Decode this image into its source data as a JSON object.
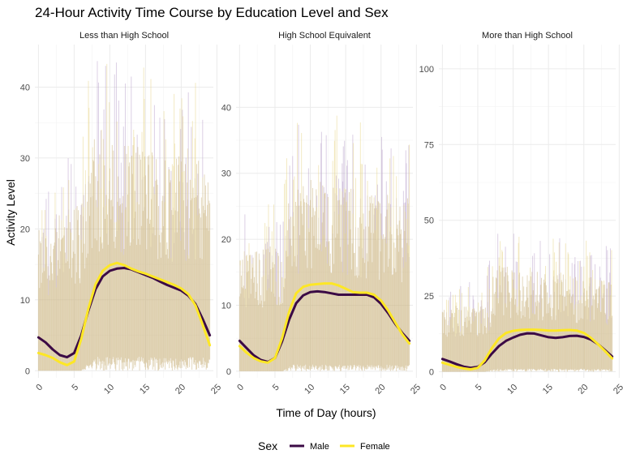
{
  "title": "24-Hour Activity Time Course by Education Level and Sex",
  "xlabel": "Time of Day (hours)",
  "ylabel": "Activity Level",
  "legend": {
    "title": "Sex",
    "items": [
      {
        "label": "Male",
        "color": "#3b0a45"
      },
      {
        "label": "Female",
        "color": "#fde725"
      }
    ]
  },
  "colors": {
    "male_line": "#3b0a45",
    "female_line": "#fde725",
    "male_ribbon": "#b9a2cc",
    "female_ribbon": "#e8d58a",
    "overlap": "#cdb887",
    "grid": "#ebebeb",
    "text": "#4d4d4d"
  },
  "chart_data": [
    {
      "type": "line",
      "facet": "Less than High School",
      "x_ticks": [
        0,
        5,
        10,
        15,
        20,
        25
      ],
      "y_ticks": [
        0,
        10,
        20,
        30,
        40
      ],
      "ylim": [
        -1,
        46
      ],
      "xlim": [
        -0.5,
        24.5
      ],
      "series": [
        {
          "name": "Male",
          "x": [
            0,
            1,
            2,
            3,
            4,
            5,
            6,
            7,
            8,
            9,
            10,
            11,
            12,
            13,
            14,
            15,
            16,
            17,
            18,
            19,
            20,
            21,
            22,
            23,
            24
          ],
          "y": [
            4.7,
            4.0,
            3.0,
            2.2,
            1.9,
            2.5,
            5.0,
            8.5,
            11.5,
            13.3,
            14.1,
            14.4,
            14.5,
            14.3,
            13.9,
            13.5,
            13.1,
            12.6,
            12.1,
            11.7,
            11.3,
            10.6,
            9.4,
            7.3,
            5.0
          ]
        },
        {
          "name": "Female",
          "x": [
            0,
            1,
            2,
            3,
            4,
            5,
            6,
            7,
            8,
            9,
            10,
            11,
            12,
            13,
            14,
            15,
            16,
            17,
            18,
            19,
            20,
            21,
            22,
            23,
            24
          ],
          "y": [
            2.5,
            2.2,
            1.8,
            1.2,
            0.8,
            1.3,
            4.5,
            8.8,
            12.2,
            14.1,
            14.9,
            15.2,
            14.9,
            14.4,
            14.0,
            13.7,
            13.3,
            12.9,
            12.5,
            12.1,
            11.6,
            10.8,
            9.2,
            6.5,
            3.6
          ]
        }
      ],
      "band": {
        "x": [
          0,
          6,
          7.5,
          24
        ],
        "upper": [
          18,
          22,
          30,
          27
        ],
        "lower": [
          0,
          0,
          2,
          2
        ]
      }
    },
    {
      "type": "line",
      "facet": "High School Equivalent",
      "x_ticks": [
        0,
        5,
        10,
        15,
        20,
        25
      ],
      "y_ticks": [
        0,
        10,
        20,
        30,
        40
      ],
      "ylim": [
        -1,
        49.5
      ],
      "xlim": [
        -0.5,
        24.5
      ],
      "series": [
        {
          "name": "Male",
          "x": [
            0,
            1,
            2,
            3,
            4,
            5,
            6,
            7,
            8,
            9,
            10,
            11,
            12,
            13,
            14,
            15,
            16,
            17,
            18,
            19,
            20,
            21,
            22,
            23,
            24
          ],
          "y": [
            4.6,
            3.5,
            2.4,
            1.7,
            1.4,
            2.0,
            4.5,
            7.8,
            10.3,
            11.5,
            12.0,
            12.1,
            12.0,
            11.8,
            11.6,
            11.6,
            11.6,
            11.6,
            11.6,
            11.2,
            10.2,
            8.8,
            7.2,
            5.8,
            4.6
          ]
        },
        {
          "name": "Female",
          "x": [
            0,
            1,
            2,
            3,
            4,
            5,
            6,
            7,
            8,
            9,
            10,
            11,
            12,
            13,
            14,
            15,
            16,
            17,
            18,
            19,
            20,
            21,
            22,
            23,
            24
          ],
          "y": [
            3.8,
            2.8,
            2.0,
            1.5,
            1.3,
            2.0,
            5.0,
            9.0,
            11.8,
            12.8,
            13.1,
            13.2,
            13.3,
            13.3,
            13.0,
            12.5,
            12.0,
            11.9,
            11.9,
            11.6,
            10.7,
            9.2,
            7.4,
            5.6,
            4.2
          ]
        }
      ],
      "band": {
        "x": [
          0,
          6,
          7.5,
          24
        ],
        "upper": [
          16,
          18,
          27,
          24
        ],
        "lower": [
          0,
          0,
          1,
          1
        ]
      }
    },
    {
      "type": "line",
      "facet": "More than High School",
      "x_ticks": [
        0,
        5,
        10,
        15,
        20,
        25
      ],
      "y_ticks": [
        0,
        25,
        50,
        75,
        100
      ],
      "ylim": [
        -2,
        108
      ],
      "xlim": [
        -0.5,
        24.5
      ],
      "series": [
        {
          "name": "Male",
          "x": [
            0,
            1,
            2,
            3,
            4,
            5,
            6,
            7,
            8,
            9,
            10,
            11,
            12,
            13,
            14,
            15,
            16,
            17,
            18,
            19,
            20,
            21,
            22,
            23,
            24
          ],
          "y": [
            4.2,
            3.4,
            2.5,
            1.7,
            1.3,
            1.6,
            3.2,
            6.0,
            8.5,
            10.2,
            11.3,
            12.2,
            12.7,
            12.6,
            12.0,
            11.4,
            11.2,
            11.4,
            11.8,
            11.9,
            11.5,
            10.6,
            9.1,
            7.1,
            5.0
          ]
        },
        {
          "name": "Female",
          "x": [
            0,
            1,
            2,
            3,
            4,
            5,
            6,
            7,
            8,
            9,
            10,
            11,
            12,
            13,
            14,
            15,
            16,
            17,
            18,
            19,
            20,
            21,
            22,
            23,
            24
          ],
          "y": [
            3.0,
            2.3,
            1.6,
            1.1,
            0.8,
            1.3,
            3.8,
            7.8,
            11.0,
            12.8,
            13.5,
            13.8,
            13.9,
            13.9,
            13.8,
            13.6,
            13.6,
            13.7,
            13.8,
            13.6,
            12.8,
            11.2,
            9.1,
            6.8,
            4.4
          ]
        }
      ],
      "band": {
        "x": [
          0,
          6,
          7.5,
          24
        ],
        "upper": [
          20,
          20,
          32,
          28
        ],
        "lower": [
          0,
          0,
          1,
          1
        ]
      }
    }
  ]
}
